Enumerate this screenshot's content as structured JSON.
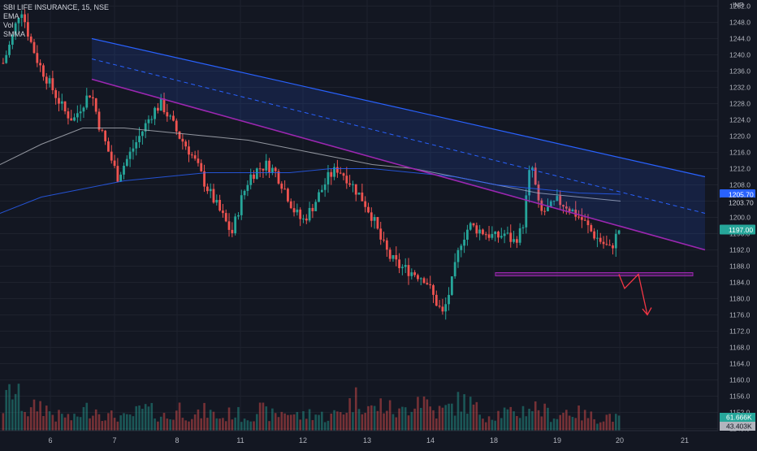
{
  "legend": {
    "symbol": "SBI LIFE INSURANCE, 15, NSE",
    "ind_ema": "EMA",
    "ind_vol": "Vol",
    "ind_smma": "SMMA"
  },
  "colors": {
    "background": "#131722",
    "grid": "#1e222d",
    "up": "#26a69a",
    "down": "#ef5350",
    "channel": "#2962ff",
    "support": "#9c27b0",
    "arrow": "#f23645",
    "ema": "#b2b5be",
    "smma": "#2962ff"
  },
  "chart_data": {
    "type": "candlestick",
    "currency": "INR",
    "price_axis": {
      "ticks": [
        1252,
        1248,
        1244,
        1240,
        1236,
        1232,
        1228,
        1224,
        1220,
        1216,
        1212,
        1208,
        1204,
        1200,
        1196,
        1192,
        1188,
        1184,
        1180,
        1176,
        1172,
        1168,
        1164,
        1160,
        1156,
        1152,
        1148
      ],
      "ylim": [
        1147.5,
        1253.5
      ],
      "labels": {
        "smma_value": "1205.70",
        "ema_value": "1203.70",
        "last_price": "1197.00",
        "vol_a": "61.666K",
        "vol_b": "43.403K"
      }
    },
    "time_axis": {
      "labels": [
        "6",
        "7",
        "8",
        "11",
        "12",
        "13",
        "14",
        "18",
        "19",
        "20",
        "21"
      ]
    },
    "price_path": [
      1238,
      1244,
      1252,
      1244,
      1238,
      1234,
      1230,
      1226,
      1224,
      1228,
      1231,
      1222,
      1216,
      1210,
      1214,
      1218,
      1222,
      1226,
      1228,
      1224,
      1220,
      1217,
      1213,
      1208,
      1204,
      1200,
      1196,
      1204,
      1210,
      1212,
      1213,
      1211,
      1207,
      1202,
      1199,
      1202,
      1206,
      1210,
      1212,
      1210,
      1207,
      1204,
      1200,
      1194,
      1190,
      1188,
      1187,
      1186,
      1185,
      1180,
      1176,
      1184,
      1194,
      1198,
      1197,
      1196,
      1195,
      1196,
      1194,
      1197,
      1214,
      1201,
      1202,
      1204,
      1203,
      1201,
      1199,
      1196,
      1194,
      1192,
      1197
    ],
    "volume_path": [
      30,
      55,
      38,
      22,
      35,
      28,
      18,
      20,
      14,
      25,
      30,
      26,
      18,
      20,
      15,
      22,
      28,
      24,
      20,
      16,
      30,
      22,
      18,
      26,
      20,
      16,
      24,
      20,
      18,
      28,
      22,
      19,
      26,
      21,
      18,
      24,
      20,
      17,
      23,
      30,
      42,
      38,
      26,
      34,
      28,
      22,
      30,
      45,
      40,
      24,
      26,
      31,
      38,
      35,
      25,
      20,
      22,
      24,
      20,
      26,
      32,
      28,
      22,
      18,
      26,
      24,
      20,
      18,
      16,
      20,
      14
    ],
    "series": [
      {
        "name": "EMA",
        "values": [
          1213,
          1218,
          1222,
          1222,
          1221,
          1220,
          1219,
          1217,
          1215,
          1213,
          1212,
          1210,
          1208,
          1206,
          1205,
          1204
        ]
      },
      {
        "name": "SMMA",
        "values": [
          1201,
          1205,
          1207,
          1209,
          1210,
          1211,
          1211,
          1211,
          1212,
          1212,
          1211,
          1210,
          1208,
          1207,
          1206,
          1205.7
        ]
      }
    ],
    "annotations": {
      "channel_upper_start": 1244,
      "channel_upper_end": 1210,
      "channel_lower_start": 1234,
      "channel_lower_end": 1192,
      "support_level": 1186,
      "arrow_target": 1176
    }
  }
}
